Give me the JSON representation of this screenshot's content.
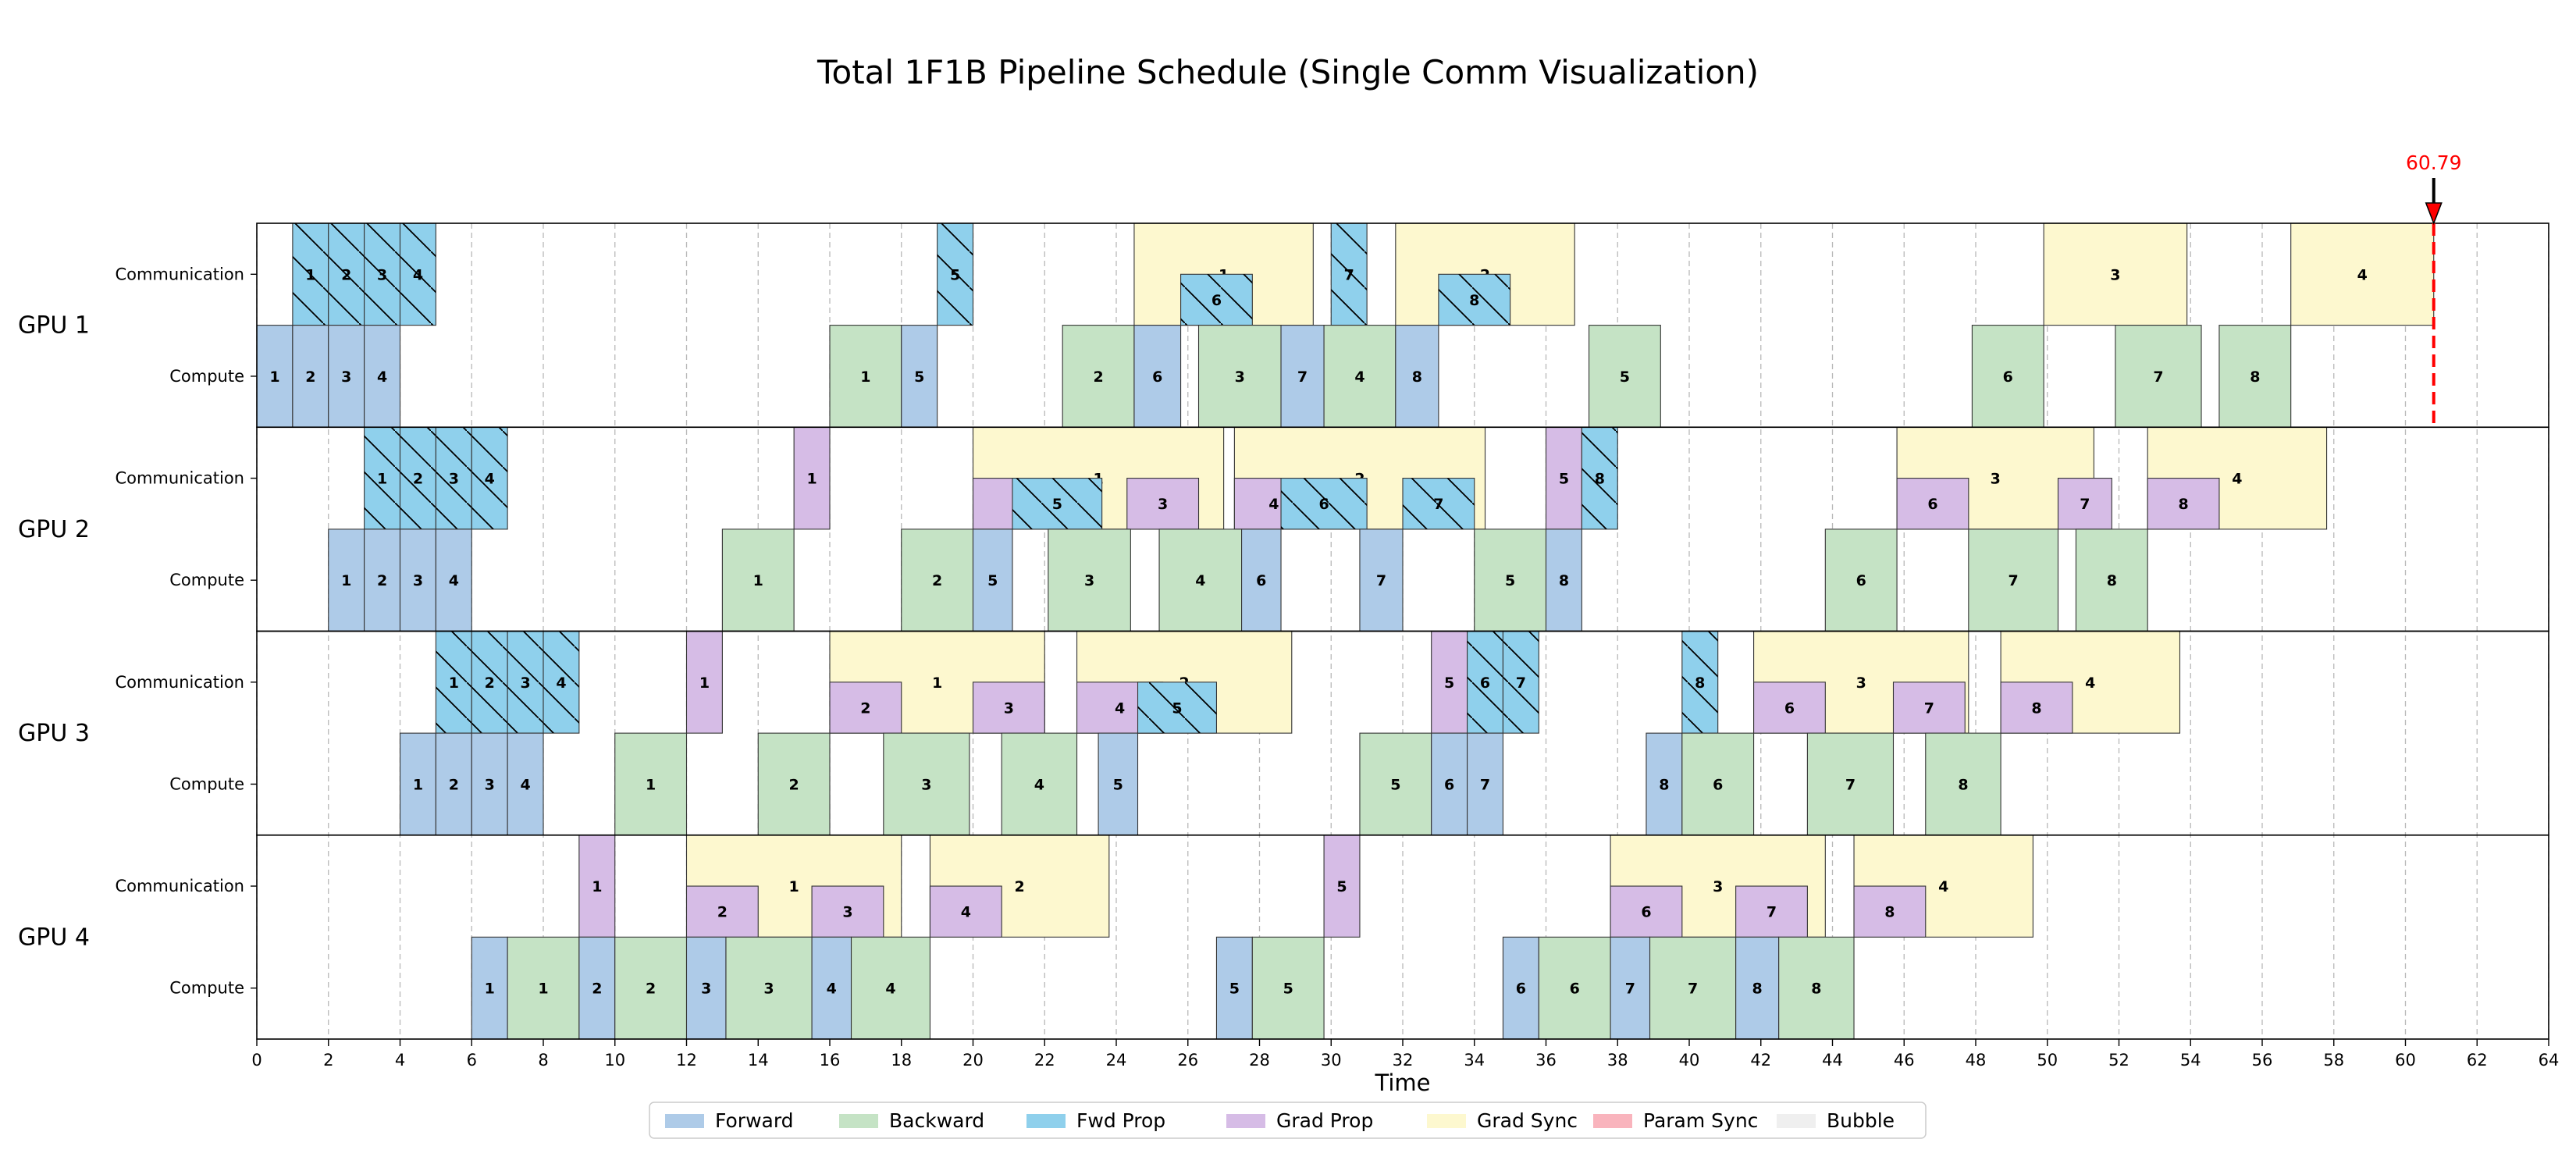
{
  "chart_data": {
    "type": "gantt",
    "title": "Total 1F1B Pipeline Schedule (Single Comm Visualization)",
    "xlabel": "Time",
    "xlim": [
      0,
      64
    ],
    "xticks": [
      0,
      2,
      4,
      6,
      8,
      10,
      12,
      14,
      16,
      18,
      20,
      22,
      24,
      26,
      28,
      30,
      32,
      34,
      36,
      38,
      40,
      42,
      44,
      46,
      48,
      50,
      52,
      54,
      56,
      58,
      60,
      62,
      64
    ],
    "grid": "vertical dashed",
    "row_labels": [
      "Communication",
      "Compute"
    ],
    "colors": {
      "forward": "#aecbe8",
      "backward": "#c5e3c5",
      "fwd_prop": "#8fd0ec",
      "grad_prop": "#d6bce6",
      "grad_sync": "#fdf8cf",
      "param_sync": "#f9b4bd",
      "bubble": "#efefef"
    },
    "legend": {
      "placement": "bottom-center",
      "entries": [
        {
          "label": "Forward",
          "key": "forward"
        },
        {
          "label": "Backward",
          "key": "backward"
        },
        {
          "label": "Fwd Prop",
          "key": "fwd_prop"
        },
        {
          "label": "Grad Prop",
          "key": "grad_prop"
        },
        {
          "label": "Grad Sync",
          "key": "grad_sync"
        },
        {
          "label": "Param Sync",
          "key": "param_sync"
        },
        {
          "label": "Bubble",
          "key": "bubble"
        }
      ]
    },
    "marker": {
      "value": 60.79,
      "label": "60.79",
      "color": "#ff0000"
    },
    "gpus": [
      {
        "name": "GPU 1",
        "compute": [
          {
            "type": "forward",
            "start": 0,
            "end": 1,
            "label": "1"
          },
          {
            "type": "forward",
            "start": 1,
            "end": 2,
            "label": "2"
          },
          {
            "type": "forward",
            "start": 2,
            "end": 3,
            "label": "3"
          },
          {
            "type": "forward",
            "start": 3,
            "end": 4,
            "label": "4"
          },
          {
            "type": "backward",
            "start": 16,
            "end": 18,
            "label": "1"
          },
          {
            "type": "forward",
            "start": 18,
            "end": 19,
            "label": "5"
          },
          {
            "type": "backward",
            "start": 22.5,
            "end": 24.5,
            "label": "2"
          },
          {
            "type": "forward",
            "start": 24.5,
            "end": 25.8,
            "label": "6"
          },
          {
            "type": "backward",
            "start": 26.3,
            "end": 28.6,
            "label": "3"
          },
          {
            "type": "forward",
            "start": 28.6,
            "end": 29.8,
            "label": "7"
          },
          {
            "type": "backward",
            "start": 29.8,
            "end": 31.8,
            "label": "4"
          },
          {
            "type": "forward",
            "start": 31.8,
            "end": 33,
            "label": "8"
          },
          {
            "type": "backward",
            "start": 37.2,
            "end": 39.2,
            "label": "5"
          },
          {
            "type": "backward",
            "start": 47.9,
            "end": 49.9,
            "label": "6"
          },
          {
            "type": "backward",
            "start": 51.9,
            "end": 54.3,
            "label": "7"
          },
          {
            "type": "backward",
            "start": 54.8,
            "end": 56.8,
            "label": "8"
          }
        ],
        "comm": [
          {
            "type": "fwd_prop",
            "start": 1,
            "end": 2,
            "label": "1"
          },
          {
            "type": "fwd_prop",
            "start": 2,
            "end": 3,
            "label": "2"
          },
          {
            "type": "fwd_prop",
            "start": 3,
            "end": 4,
            "label": "3"
          },
          {
            "type": "fwd_prop",
            "start": 4,
            "end": 5,
            "label": "4"
          },
          {
            "type": "fwd_prop",
            "start": 19,
            "end": 20,
            "label": "5"
          },
          {
            "type": "grad_sync",
            "start": 24.5,
            "end": 29.5,
            "label": "1"
          },
          {
            "type": "fwd_prop",
            "start": 25.8,
            "end": 27.8,
            "label": "6",
            "half": true
          },
          {
            "type": "fwd_prop",
            "start": 30,
            "end": 31,
            "label": "7"
          },
          {
            "type": "grad_sync",
            "start": 31.8,
            "end": 36.8,
            "label": "2"
          },
          {
            "type": "fwd_prop",
            "start": 33,
            "end": 35,
            "label": "8",
            "half": true
          },
          {
            "type": "grad_sync",
            "start": 49.9,
            "end": 53.9,
            "label": "3"
          },
          {
            "type": "grad_sync",
            "start": 56.8,
            "end": 60.79,
            "label": "4"
          }
        ]
      },
      {
        "name": "GPU 2",
        "compute": [
          {
            "type": "forward",
            "start": 2,
            "end": 3,
            "label": "1"
          },
          {
            "type": "forward",
            "start": 3,
            "end": 4,
            "label": "2"
          },
          {
            "type": "forward",
            "start": 4,
            "end": 5,
            "label": "3"
          },
          {
            "type": "forward",
            "start": 5,
            "end": 6,
            "label": "4"
          },
          {
            "type": "backward",
            "start": 13,
            "end": 15,
            "label": "1"
          },
          {
            "type": "backward",
            "start": 18,
            "end": 20,
            "label": "2"
          },
          {
            "type": "forward",
            "start": 20,
            "end": 21.1,
            "label": "5"
          },
          {
            "type": "backward",
            "start": 22.1,
            "end": 24.4,
            "label": "3"
          },
          {
            "type": "backward",
            "start": 25.2,
            "end": 27.5,
            "label": "4"
          },
          {
            "type": "forward",
            "start": 27.5,
            "end": 28.6,
            "label": "6"
          },
          {
            "type": "forward",
            "start": 30.8,
            "end": 32,
            "label": "7"
          },
          {
            "type": "backward",
            "start": 34,
            "end": 36,
            "label": "5"
          },
          {
            "type": "forward",
            "start": 36,
            "end": 37,
            "label": "8"
          },
          {
            "type": "backward",
            "start": 43.8,
            "end": 45.8,
            "label": "6"
          },
          {
            "type": "backward",
            "start": 47.8,
            "end": 50.3,
            "label": "7"
          },
          {
            "type": "backward",
            "start": 50.8,
            "end": 52.8,
            "label": "8"
          }
        ],
        "comm": [
          {
            "type": "fwd_prop",
            "start": 3,
            "end": 4,
            "label": "1"
          },
          {
            "type": "fwd_prop",
            "start": 4,
            "end": 5,
            "label": "2"
          },
          {
            "type": "fwd_prop",
            "start": 5,
            "end": 6,
            "label": "3"
          },
          {
            "type": "fwd_prop",
            "start": 6,
            "end": 7,
            "label": "4"
          },
          {
            "type": "grad_prop",
            "start": 15,
            "end": 16,
            "label": "1"
          },
          {
            "type": "grad_sync",
            "start": 20,
            "end": 27,
            "label": "1"
          },
          {
            "type": "grad_prop",
            "start": 20,
            "end": 22.5,
            "label": "2",
            "half": true
          },
          {
            "type": "fwd_prop",
            "start": 21.1,
            "end": 23.6,
            "label": "5",
            "half": true
          },
          {
            "type": "grad_prop",
            "start": 24.3,
            "end": 26.3,
            "label": "3",
            "half": true
          },
          {
            "type": "grad_sync",
            "start": 27.3,
            "end": 34.3,
            "label": "2"
          },
          {
            "type": "grad_prop",
            "start": 27.3,
            "end": 29.5,
            "label": "4",
            "half": true
          },
          {
            "type": "fwd_prop",
            "start": 28.6,
            "end": 31,
            "label": "6",
            "half": true
          },
          {
            "type": "fwd_prop",
            "start": 32,
            "end": 34,
            "label": "7",
            "half": true
          },
          {
            "type": "grad_prop",
            "start": 36,
            "end": 37,
            "label": "5"
          },
          {
            "type": "fwd_prop",
            "start": 37,
            "end": 38,
            "label": "8"
          },
          {
            "type": "grad_sync",
            "start": 45.8,
            "end": 51.3,
            "label": "3"
          },
          {
            "type": "grad_prop",
            "start": 45.8,
            "end": 47.8,
            "label": "6",
            "half": true
          },
          {
            "type": "grad_prop",
            "start": 50.3,
            "end": 51.8,
            "label": "7",
            "half": true
          },
          {
            "type": "grad_sync",
            "start": 52.8,
            "end": 57.8,
            "label": "4"
          },
          {
            "type": "grad_prop",
            "start": 52.8,
            "end": 54.8,
            "label": "8",
            "half": true
          }
        ]
      },
      {
        "name": "GPU 3",
        "compute": [
          {
            "type": "forward",
            "start": 4,
            "end": 5,
            "label": "1"
          },
          {
            "type": "forward",
            "start": 5,
            "end": 6,
            "label": "2"
          },
          {
            "type": "forward",
            "start": 6,
            "end": 7,
            "label": "3"
          },
          {
            "type": "forward",
            "start": 7,
            "end": 8,
            "label": "4"
          },
          {
            "type": "backward",
            "start": 10,
            "end": 12,
            "label": "1"
          },
          {
            "type": "backward",
            "start": 14,
            "end": 16,
            "label": "2"
          },
          {
            "type": "backward",
            "start": 17.5,
            "end": 19.9,
            "label": "3"
          },
          {
            "type": "backward",
            "start": 20.8,
            "end": 22.9,
            "label": "4"
          },
          {
            "type": "forward",
            "start": 23.5,
            "end": 24.6,
            "label": "5"
          },
          {
            "type": "backward",
            "start": 30.8,
            "end": 32.8,
            "label": "5"
          },
          {
            "type": "forward",
            "start": 32.8,
            "end": 33.8,
            "label": "6"
          },
          {
            "type": "forward",
            "start": 33.8,
            "end": 34.8,
            "label": "7"
          },
          {
            "type": "forward",
            "start": 38.8,
            "end": 39.8,
            "label": "8"
          },
          {
            "type": "backward",
            "start": 39.8,
            "end": 41.8,
            "label": "6"
          },
          {
            "type": "backward",
            "start": 43.3,
            "end": 45.7,
            "label": "7"
          },
          {
            "type": "backward",
            "start": 46.6,
            "end": 48.7,
            "label": "8"
          }
        ],
        "comm": [
          {
            "type": "fwd_prop",
            "start": 5,
            "end": 6,
            "label": "1"
          },
          {
            "type": "fwd_prop",
            "start": 6,
            "end": 7,
            "label": "2"
          },
          {
            "type": "fwd_prop",
            "start": 7,
            "end": 8,
            "label": "3"
          },
          {
            "type": "fwd_prop",
            "start": 8,
            "end": 9,
            "label": "4"
          },
          {
            "type": "grad_prop",
            "start": 12,
            "end": 13,
            "label": "1"
          },
          {
            "type": "grad_sync",
            "start": 16,
            "end": 22,
            "label": "1"
          },
          {
            "type": "grad_prop",
            "start": 16,
            "end": 18,
            "label": "2",
            "half": true
          },
          {
            "type": "grad_prop",
            "start": 20,
            "end": 22,
            "label": "3",
            "half": true
          },
          {
            "type": "grad_sync",
            "start": 22.9,
            "end": 28.9,
            "label": "2"
          },
          {
            "type": "grad_prop",
            "start": 22.9,
            "end": 25.3,
            "label": "4",
            "half": true
          },
          {
            "type": "fwd_prop",
            "start": 24.6,
            "end": 26.8,
            "label": "5",
            "half": true
          },
          {
            "type": "grad_prop",
            "start": 32.8,
            "end": 33.8,
            "label": "5"
          },
          {
            "type": "fwd_prop",
            "start": 33.8,
            "end": 34.8,
            "label": "6"
          },
          {
            "type": "fwd_prop",
            "start": 34.8,
            "end": 35.8,
            "label": "7"
          },
          {
            "type": "fwd_prop",
            "start": 39.8,
            "end": 40.8,
            "label": "8"
          },
          {
            "type": "grad_sync",
            "start": 41.8,
            "end": 47.8,
            "label": "3"
          },
          {
            "type": "grad_prop",
            "start": 41.8,
            "end": 43.8,
            "label": "6",
            "half": true
          },
          {
            "type": "grad_prop",
            "start": 45.7,
            "end": 47.7,
            "label": "7",
            "half": true
          },
          {
            "type": "grad_sync",
            "start": 48.7,
            "end": 53.7,
            "label": "4"
          },
          {
            "type": "grad_prop",
            "start": 48.7,
            "end": 50.7,
            "label": "8",
            "half": true
          }
        ]
      },
      {
        "name": "GPU 4",
        "compute": [
          {
            "type": "forward",
            "start": 6,
            "end": 7,
            "label": "1"
          },
          {
            "type": "backward",
            "start": 7,
            "end": 9,
            "label": "1"
          },
          {
            "type": "forward",
            "start": 9,
            "end": 10,
            "label": "2"
          },
          {
            "type": "backward",
            "start": 10,
            "end": 12,
            "label": "2"
          },
          {
            "type": "forward",
            "start": 12,
            "end": 13.1,
            "label": "3"
          },
          {
            "type": "backward",
            "start": 13.1,
            "end": 15.5,
            "label": "3"
          },
          {
            "type": "forward",
            "start": 15.5,
            "end": 16.6,
            "label": "4"
          },
          {
            "type": "backward",
            "start": 16.6,
            "end": 18.8,
            "label": "4"
          },
          {
            "type": "forward",
            "start": 26.8,
            "end": 27.8,
            "label": "5"
          },
          {
            "type": "backward",
            "start": 27.8,
            "end": 29.8,
            "label": "5"
          },
          {
            "type": "forward",
            "start": 34.8,
            "end": 35.8,
            "label": "6"
          },
          {
            "type": "backward",
            "start": 35.8,
            "end": 37.8,
            "label": "6"
          },
          {
            "type": "forward",
            "start": 37.8,
            "end": 38.9,
            "label": "7"
          },
          {
            "type": "backward",
            "start": 38.9,
            "end": 41.3,
            "label": "7"
          },
          {
            "type": "forward",
            "start": 41.3,
            "end": 42.5,
            "label": "8"
          },
          {
            "type": "backward",
            "start": 42.5,
            "end": 44.6,
            "label": "8"
          }
        ],
        "comm": [
          {
            "type": "grad_prop",
            "start": 9,
            "end": 10,
            "label": "1"
          },
          {
            "type": "grad_sync",
            "start": 12,
            "end": 18,
            "label": "1"
          },
          {
            "type": "grad_prop",
            "start": 12,
            "end": 14,
            "label": "2",
            "half": true
          },
          {
            "type": "grad_prop",
            "start": 15.5,
            "end": 17.5,
            "label": "3",
            "half": true
          },
          {
            "type": "grad_sync",
            "start": 18.8,
            "end": 23.8,
            "label": "2"
          },
          {
            "type": "grad_prop",
            "start": 18.8,
            "end": 20.8,
            "label": "4",
            "half": true
          },
          {
            "type": "grad_prop",
            "start": 29.8,
            "end": 30.8,
            "label": "5"
          },
          {
            "type": "grad_sync",
            "start": 37.8,
            "end": 43.8,
            "label": "3"
          },
          {
            "type": "grad_prop",
            "start": 37.8,
            "end": 39.8,
            "label": "6",
            "half": true
          },
          {
            "type": "grad_prop",
            "start": 41.3,
            "end": 43.3,
            "label": "7",
            "half": true
          },
          {
            "type": "grad_sync",
            "start": 44.6,
            "end": 49.6,
            "label": "4"
          },
          {
            "type": "grad_prop",
            "start": 44.6,
            "end": 46.6,
            "label": "8",
            "half": true
          }
        ]
      }
    ]
  }
}
